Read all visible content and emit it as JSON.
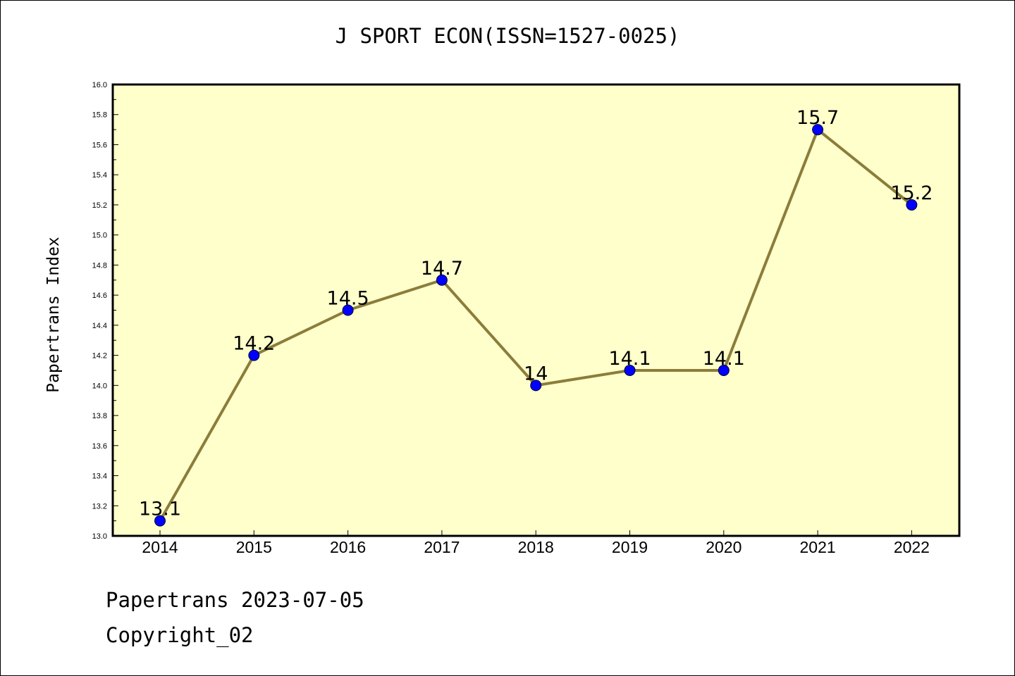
{
  "chart_data": {
    "type": "line",
    "title": "J SPORT ECON(ISSN=1527-0025)",
    "xlabel": "",
    "ylabel": "Papertrans Index",
    "categories": [
      "2014",
      "2015",
      "2016",
      "2017",
      "2018",
      "2019",
      "2020",
      "2021",
      "2022"
    ],
    "series": [
      {
        "values": [
          13.1,
          14.2,
          14.5,
          14.7,
          14.0,
          14.1,
          14.1,
          15.7,
          15.2
        ],
        "data_labels": [
          "13.1",
          "14.2",
          "14.5",
          "14.7",
          "14",
          "14.1",
          "14.1",
          "15.7",
          "15.2"
        ]
      }
    ],
    "ylim": [
      13.0,
      16.0
    ],
    "yticks": [
      "13.0",
      "13.2",
      "13.4",
      "13.6",
      "13.8",
      "14.0",
      "14.2",
      "14.4",
      "14.6",
      "14.8",
      "15.0",
      "15.2",
      "15.4",
      "15.6",
      "15.8",
      "16.0"
    ],
    "grid": false,
    "legend": "none",
    "colors": {
      "plot_background": "#ffffcc",
      "line": "#8b7d3a",
      "marker": "#0000ff"
    }
  },
  "footer": {
    "date": "Papertrans 2023-07-05",
    "copyright": "Copyright_02"
  }
}
